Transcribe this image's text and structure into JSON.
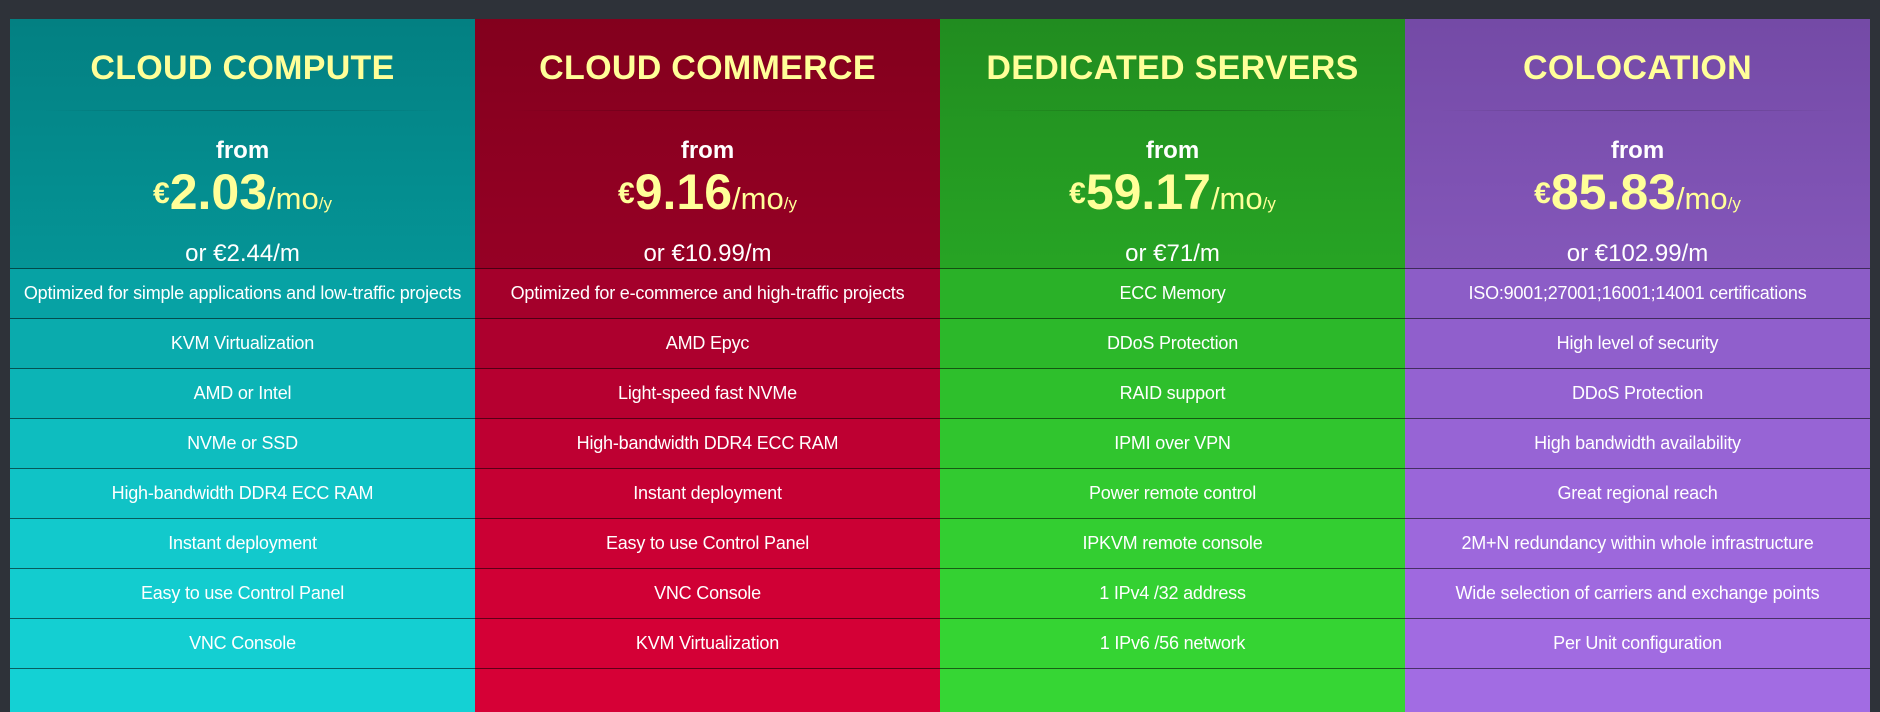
{
  "plans": [
    {
      "title": "CLOUD COMPUTE",
      "from_label": "from",
      "currency": "€",
      "amount": "2.03",
      "period": "/mo",
      "period_sub": "/y",
      "monthly": "or €2.44/m",
      "features": [
        "Optimized for simple applications and low-traffic projects",
        "KVM Virtualization",
        "AMD or Intel",
        "NVMe or SSD",
        "High-bandwidth DDR4 ECC RAM",
        "Instant deployment",
        "Easy to use Control Panel",
        "VNC Console"
      ]
    },
    {
      "title": "CLOUD COMMERCE",
      "from_label": "from",
      "currency": "€",
      "amount": "9.16",
      "period": "/mo",
      "period_sub": "/y",
      "monthly": "or €10.99/m",
      "features": [
        "Optimized for e-commerce and high-traffic projects",
        "AMD Epyc",
        "Light-speed fast NVMe",
        "High-bandwidth DDR4 ECC RAM",
        "Instant deployment",
        "Easy to use Control Panel",
        "VNC Console",
        "KVM Virtualization"
      ]
    },
    {
      "title": "DEDICATED SERVERS",
      "from_label": "from",
      "currency": "€",
      "amount": "59.17",
      "period": "/mo",
      "period_sub": "/y",
      "monthly": "or €71/m",
      "features": [
        "ECC Memory",
        "DDoS Protection",
        "RAID support",
        "IPMI over VPN",
        "Power remote control",
        "IPKVM remote console",
        "1 IPv4 /32 address",
        "1 IPv6 /56 network"
      ]
    },
    {
      "title": "COLOCATION",
      "from_label": "from",
      "currency": "€",
      "amount": "85.83",
      "period": "/mo",
      "period_sub": "/y",
      "monthly": "or €102.99/m",
      "features": [
        "ISO:9001;27001;16001;14001 certifications",
        "High level of security",
        "DDoS Protection",
        "High bandwidth availability",
        "Great regional reach",
        "2M+N redundancy within whole infrastructure",
        "Wide selection of carriers and exchange points",
        "Per Unit configuration"
      ]
    }
  ]
}
